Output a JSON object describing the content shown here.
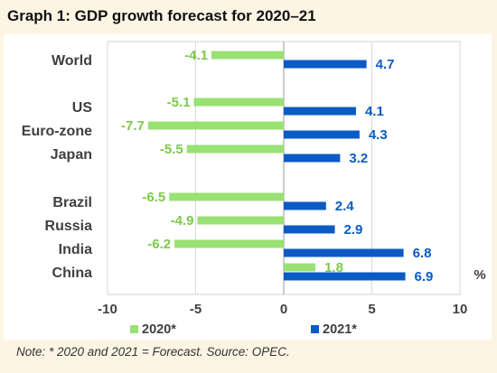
{
  "title": "Graph 1: GDP growth forecast for 2020–21",
  "note": "Note: * 2020 and 2021 = Forecast. Source: OPEC.",
  "chart_data": {
    "type": "bar",
    "orientation": "horizontal",
    "categories": [
      "World",
      "US",
      "Euro-zone",
      "Japan",
      "Brazil",
      "Russia",
      "India",
      "China"
    ],
    "series": [
      {
        "name": "2020*",
        "color": "#99e173",
        "label_color": "#7dc94a",
        "values": [
          -4.1,
          -5.1,
          -7.7,
          -5.5,
          -6.5,
          -4.9,
          -6.2,
          1.8
        ]
      },
      {
        "name": "2021*",
        "color": "#0a5bc5",
        "label_color": "#0a5bc5",
        "values": [
          4.7,
          4.1,
          4.3,
          3.2,
          2.4,
          2.9,
          6.8,
          6.9
        ]
      }
    ],
    "x_ticks": [
      "-10",
      "-5",
      "0",
      "5",
      "10"
    ],
    "xlim": [
      -10,
      10
    ],
    "unit": "%",
    "legend_position": "bottom",
    "grid": true
  }
}
